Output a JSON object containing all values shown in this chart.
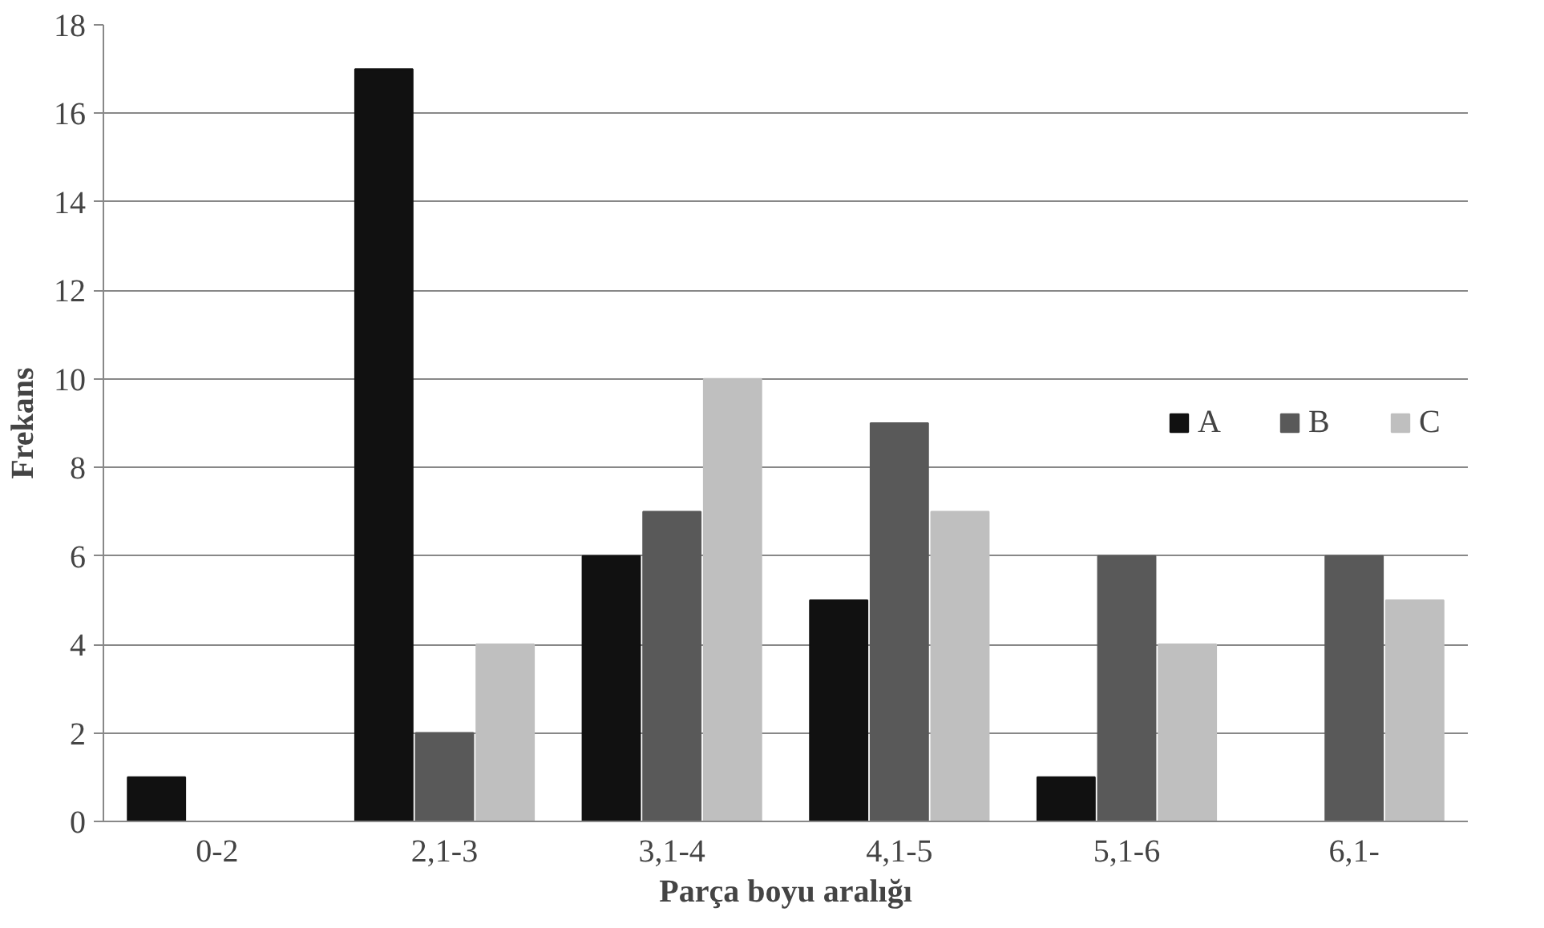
{
  "chart_data": {
    "type": "bar",
    "xlabel": "Parça boyu aralığı",
    "ylabel": "Frekans",
    "categories": [
      "0-2",
      "2,1-3",
      "3,1-4",
      "4,1-5",
      "5,1-6",
      "6,1-"
    ],
    "series": [
      {
        "name": "A",
        "color": "#111111",
        "values": [
          1,
          17,
          6,
          5,
          1,
          0
        ]
      },
      {
        "name": "B",
        "color": "#595959",
        "values": [
          0,
          2,
          7,
          9,
          6,
          6
        ]
      },
      {
        "name": "C",
        "color": "#bfbfbf",
        "values": [
          0,
          4,
          10,
          7,
          4,
          5
        ]
      }
    ],
    "ylim": [
      0,
      18
    ],
    "yticks": [
      0,
      2,
      4,
      6,
      8,
      10,
      12,
      14,
      16,
      18
    ],
    "grid": "y",
    "legend": "right"
  }
}
